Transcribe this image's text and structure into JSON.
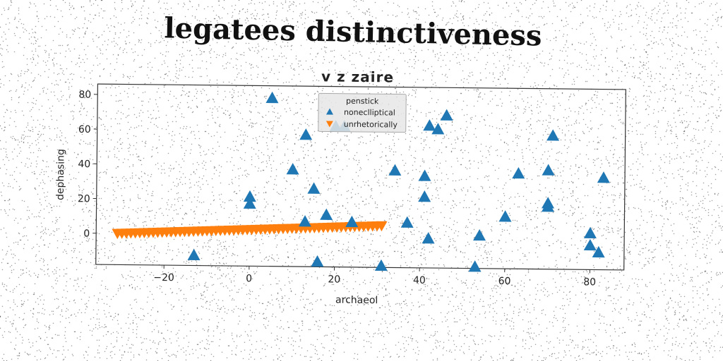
{
  "figure": {
    "suptitle": "legatees distinctiveness"
  },
  "chart_data": {
    "type": "scatter",
    "title": "v z zaire",
    "xlabel": "archaeol",
    "ylabel": "dephasing",
    "xlim": [
      -36,
      88
    ],
    "ylim": [
      -18,
      86
    ],
    "xticks": [
      -20,
      0,
      20,
      40,
      60,
      80
    ],
    "yticks": [
      0,
      20,
      40,
      60,
      80
    ],
    "xtick_labels": [
      "−20",
      "0",
      "20",
      "40",
      "60",
      "80"
    ],
    "ytick_labels": [
      "0",
      "20",
      "40",
      "60",
      "80"
    ],
    "grid": false,
    "legend": {
      "title": "penstick",
      "placement": "top-center"
    },
    "series": [
      {
        "name": "noneclliptical",
        "marker": "triangle-up",
        "color": "#1f77b4",
        "points": [
          [
            5,
            79
          ],
          [
            13,
            58
          ],
          [
            20,
            63
          ],
          [
            22,
            63
          ],
          [
            42,
            64
          ],
          [
            44,
            62
          ],
          [
            46,
            70
          ],
          [
            71,
            59
          ],
          [
            10,
            38
          ],
          [
            15,
            27
          ],
          [
            34,
            38
          ],
          [
            41,
            35
          ],
          [
            63,
            37
          ],
          [
            70,
            39
          ],
          [
            83,
            35
          ],
          [
            0,
            22
          ],
          [
            0,
            18
          ],
          [
            18,
            12
          ],
          [
            13,
            8
          ],
          [
            24,
            8
          ],
          [
            37,
            8
          ],
          [
            41,
            23
          ],
          [
            60,
            12
          ],
          [
            70,
            20
          ],
          [
            70,
            18
          ],
          [
            54,
            1
          ],
          [
            42,
            -1
          ],
          [
            80,
            3
          ],
          [
            80,
            -4
          ],
          [
            82,
            -8
          ],
          [
            -13,
            -12
          ],
          [
            16,
            -15
          ],
          [
            31,
            -17
          ],
          [
            53,
            -17
          ]
        ]
      },
      {
        "name": "unrhetorically",
        "marker": "triangle-down",
        "color": "#ff7f0e",
        "x_start": -31,
        "x_end": 31,
        "y_start": 0,
        "y_end": 6,
        "count": 60
      }
    ]
  }
}
